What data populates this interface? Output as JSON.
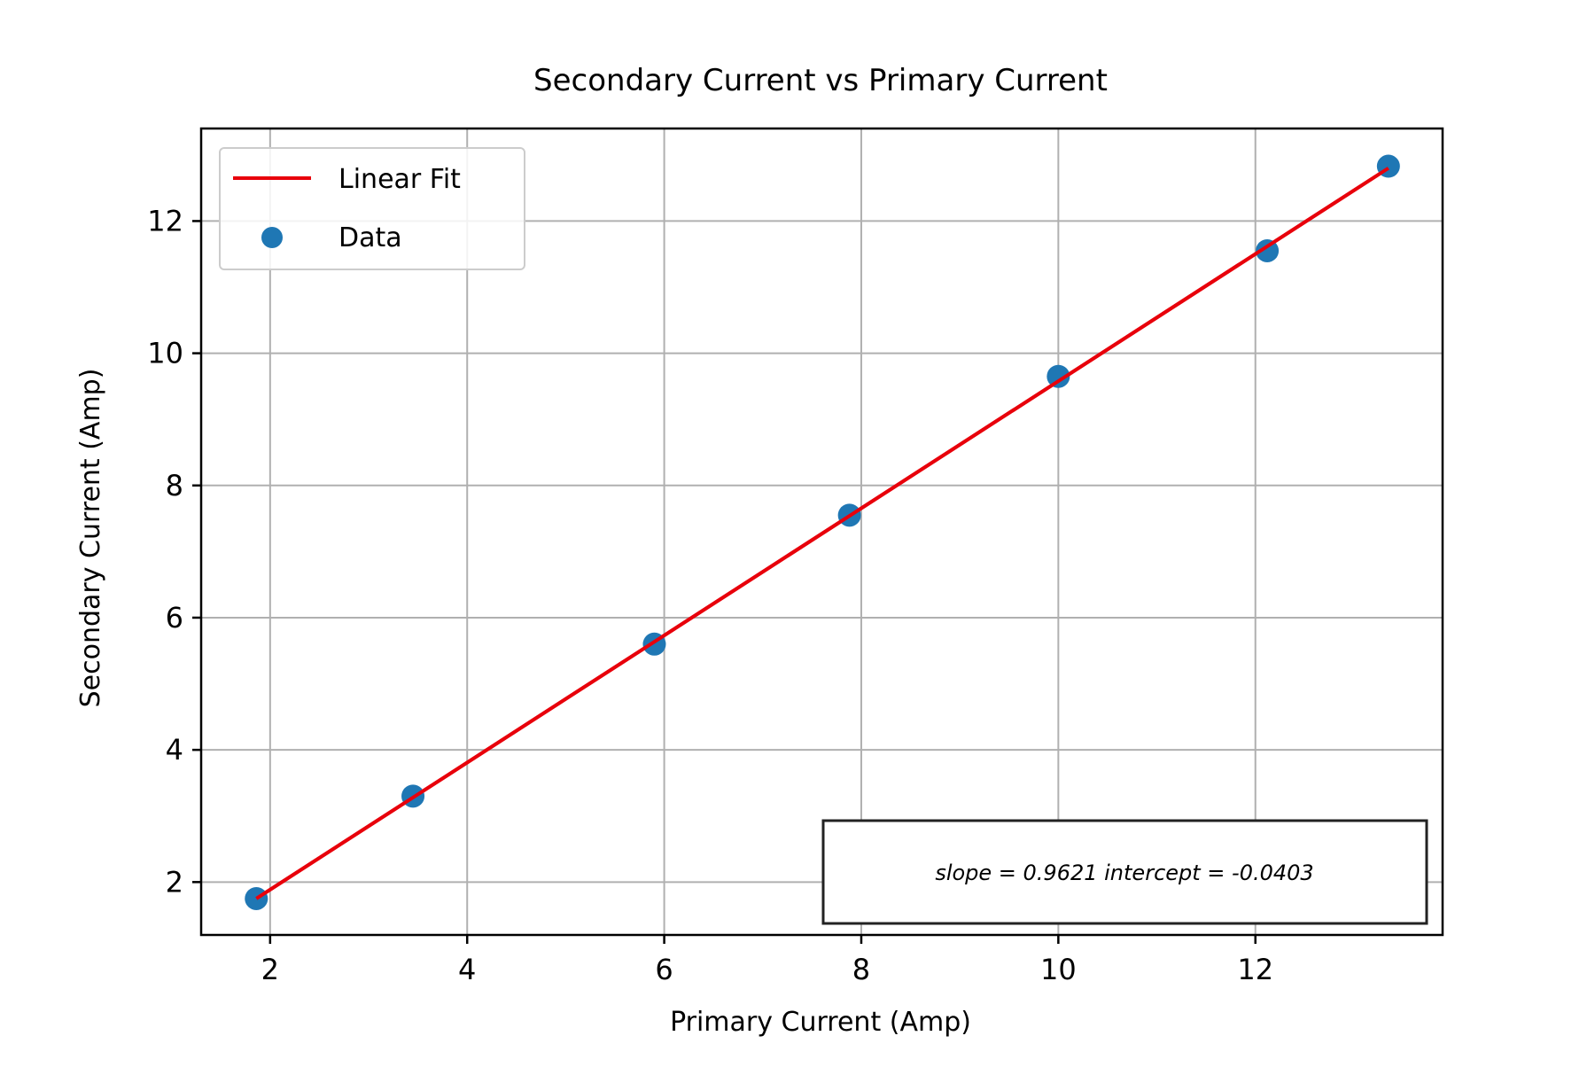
{
  "chart_data": {
    "type": "scatter",
    "title": "Secondary Current vs Primary Current",
    "xlabel": "Primary Current (Amp)",
    "ylabel": "Secondary Current (Amp)",
    "xlim": [
      1.3,
      13.9
    ],
    "ylim": [
      1.2,
      13.4
    ],
    "xticks": [
      2,
      4,
      6,
      8,
      10,
      12
    ],
    "yticks": [
      2,
      4,
      6,
      8,
      10,
      12
    ],
    "grid": true,
    "legend_position": "upper-left",
    "series": [
      {
        "name": "Linear Fit",
        "kind": "line",
        "color": "#e8000b",
        "x": [
          1.86,
          13.35
        ],
        "y": [
          1.75,
          12.8
        ]
      },
      {
        "name": "Data",
        "kind": "scatter",
        "color": "#1f77b4",
        "x": [
          1.86,
          3.45,
          5.9,
          7.88,
          10.0,
          12.12,
          13.35
        ],
        "y": [
          1.75,
          3.3,
          5.6,
          7.55,
          9.65,
          11.55,
          12.83
        ]
      }
    ],
    "annotation": "slope = 0.9621 intercept = -0.0403"
  }
}
